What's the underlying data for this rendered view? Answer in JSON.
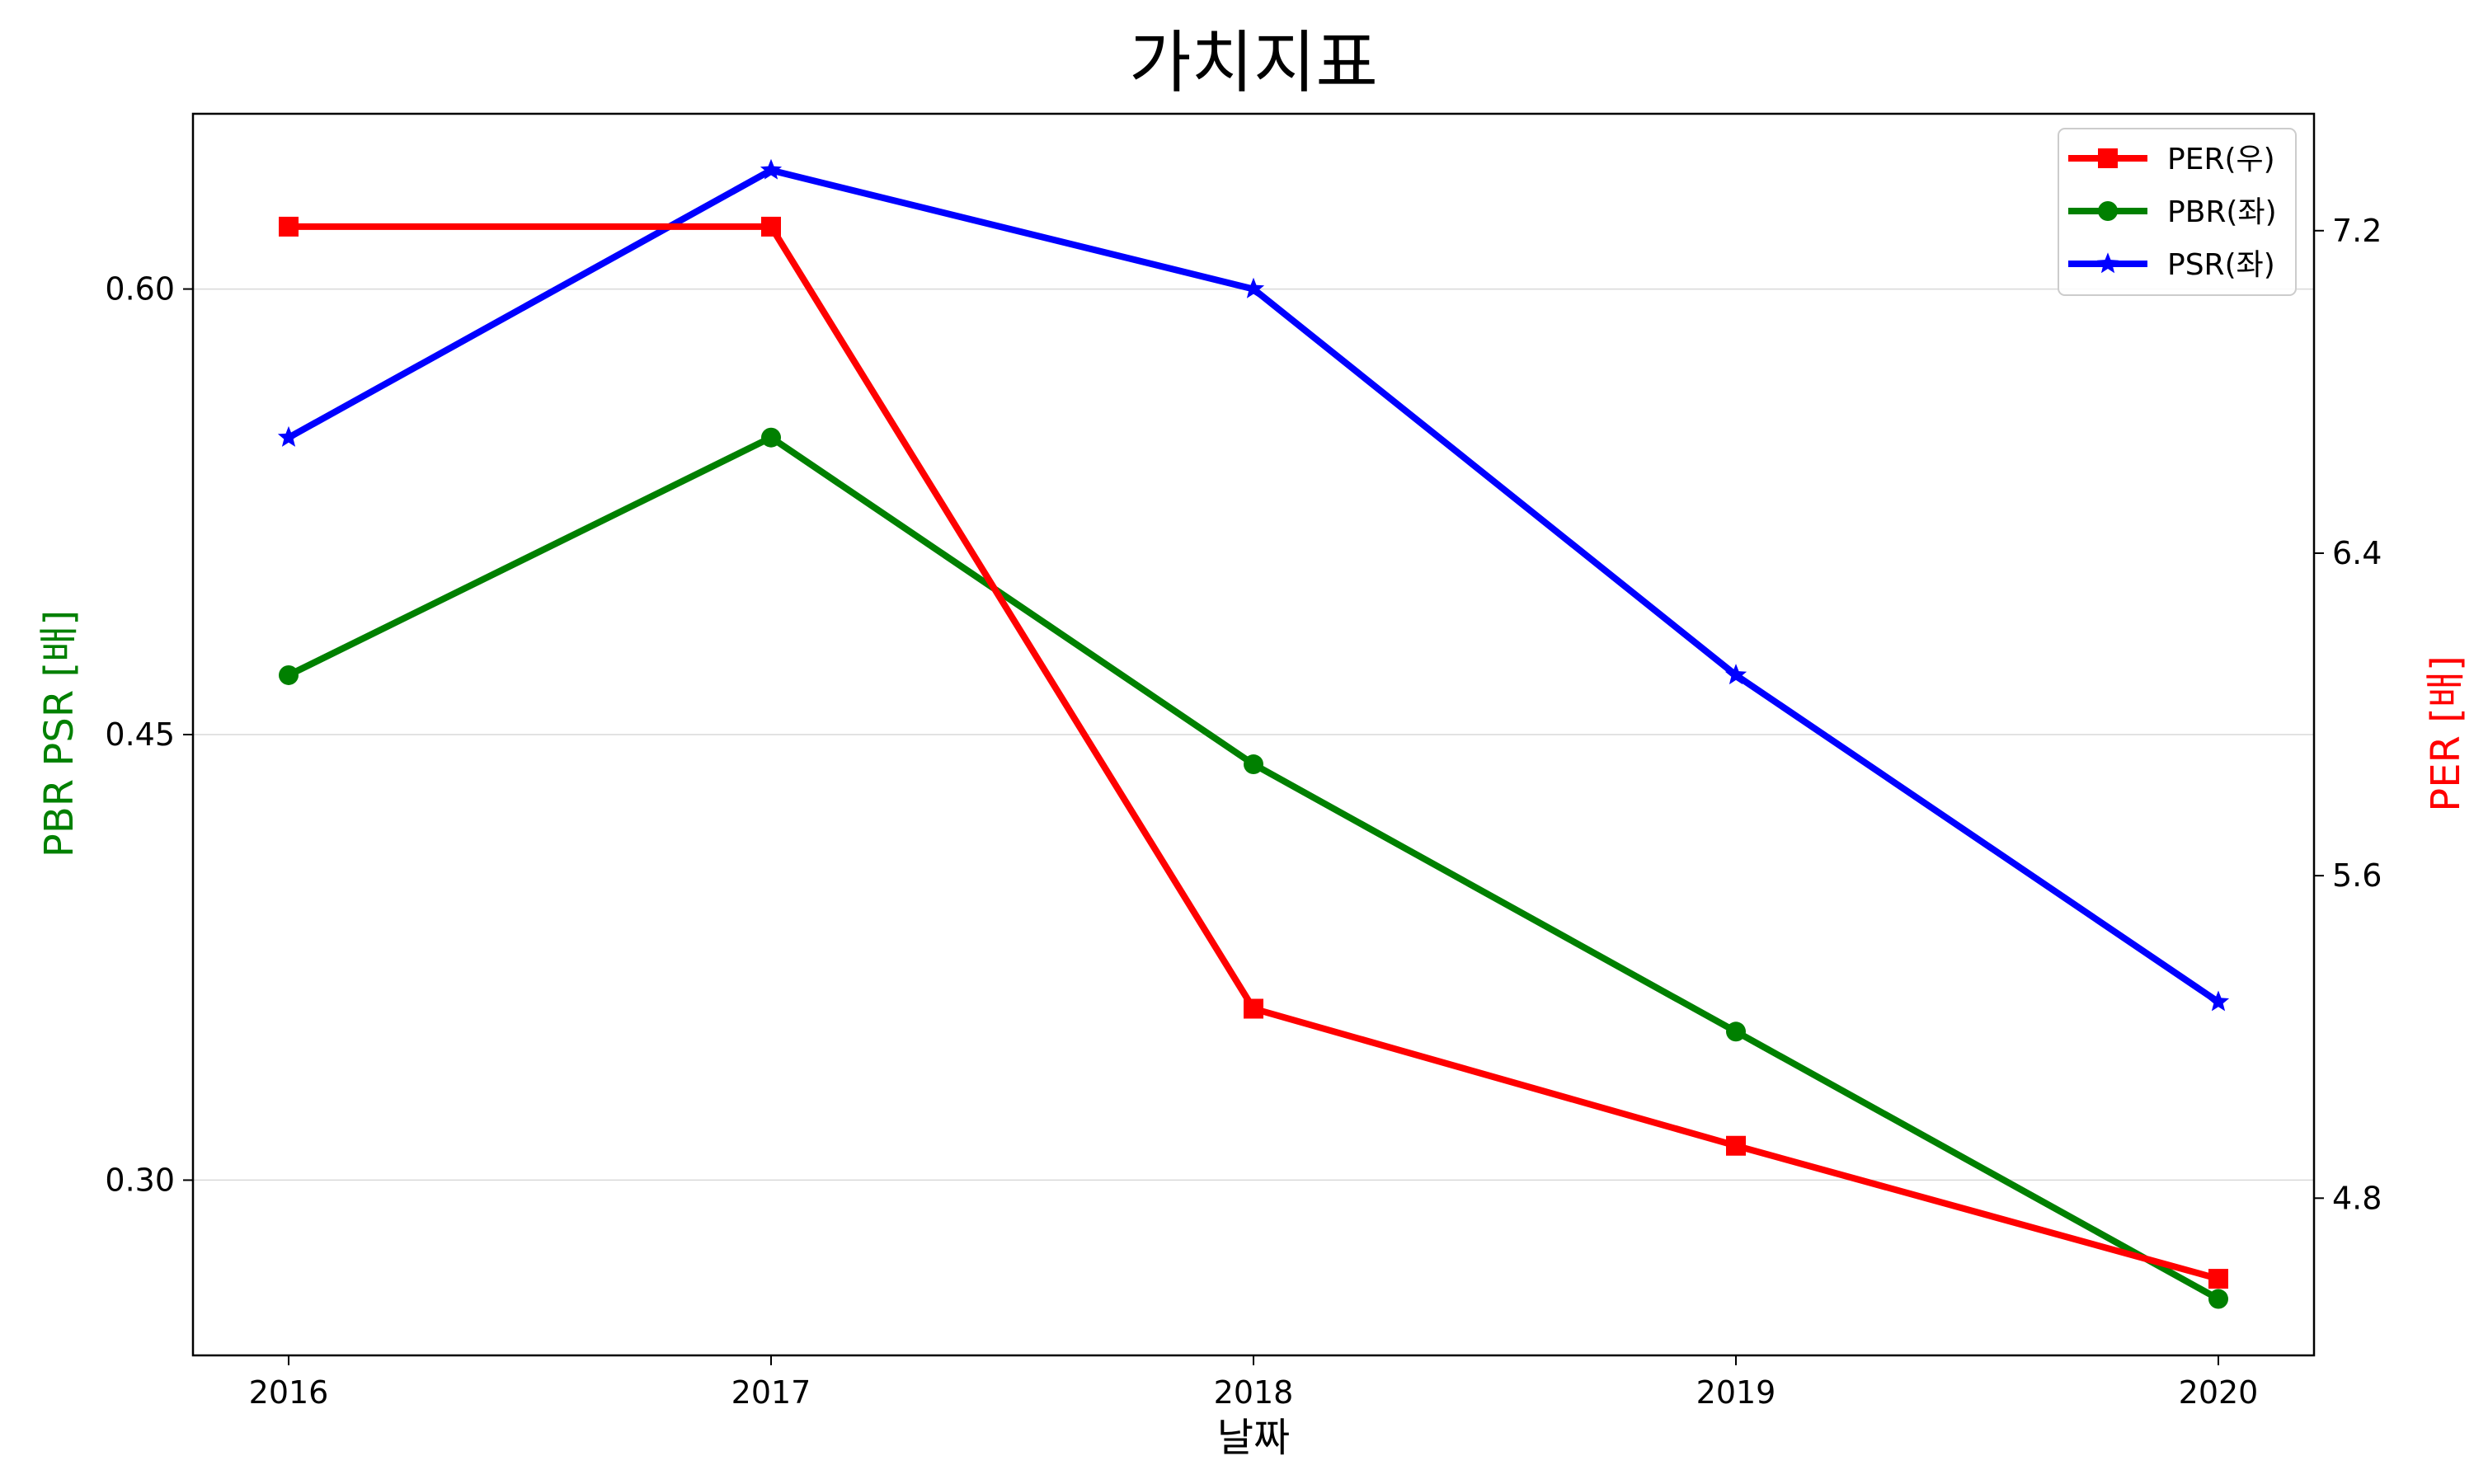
{
  "chart_data": {
    "type": "line",
    "title": "가치지표",
    "xlabel": "날짜",
    "ylabel_left": "PBR PSR [배]",
    "ylabel_right": "PER [배]",
    "categories": [
      "2016",
      "2017",
      "2018",
      "2019",
      "2020"
    ],
    "y_left": {
      "lim": [
        0.241,
        0.659
      ],
      "ticks": [
        0.3,
        0.45,
        0.6
      ],
      "tick_labels": [
        "0.30",
        "0.45",
        "0.60"
      ]
    },
    "y_right": {
      "lim": [
        4.41,
        7.49
      ],
      "ticks": [
        4.8,
        5.6,
        6.4,
        7.2
      ],
      "tick_labels": [
        "4.8",
        "5.6",
        "6.4",
        "7.2"
      ]
    },
    "grid": "horizontal, left axis",
    "legend_position": "upper right",
    "series": [
      {
        "name": "PER(우)",
        "axis": "right",
        "marker": "square",
        "color": "#ff0000",
        "values": [
          7.21,
          7.21,
          5.27,
          4.93,
          4.6
        ]
      },
      {
        "name": "PBR(좌)",
        "axis": "left",
        "marker": "circle",
        "color": "#008000",
        "values": [
          0.47,
          0.55,
          0.44,
          0.35,
          0.26
        ]
      },
      {
        "name": "PSR(좌)",
        "axis": "left",
        "marker": "star",
        "color": "#0000ff",
        "values": [
          0.55,
          0.64,
          0.6,
          0.47,
          0.36
        ]
      }
    ],
    "colors": {
      "ylabel_left": "#008000",
      "ylabel_right": "#ff0000",
      "grid": "#d9d9d9"
    }
  }
}
